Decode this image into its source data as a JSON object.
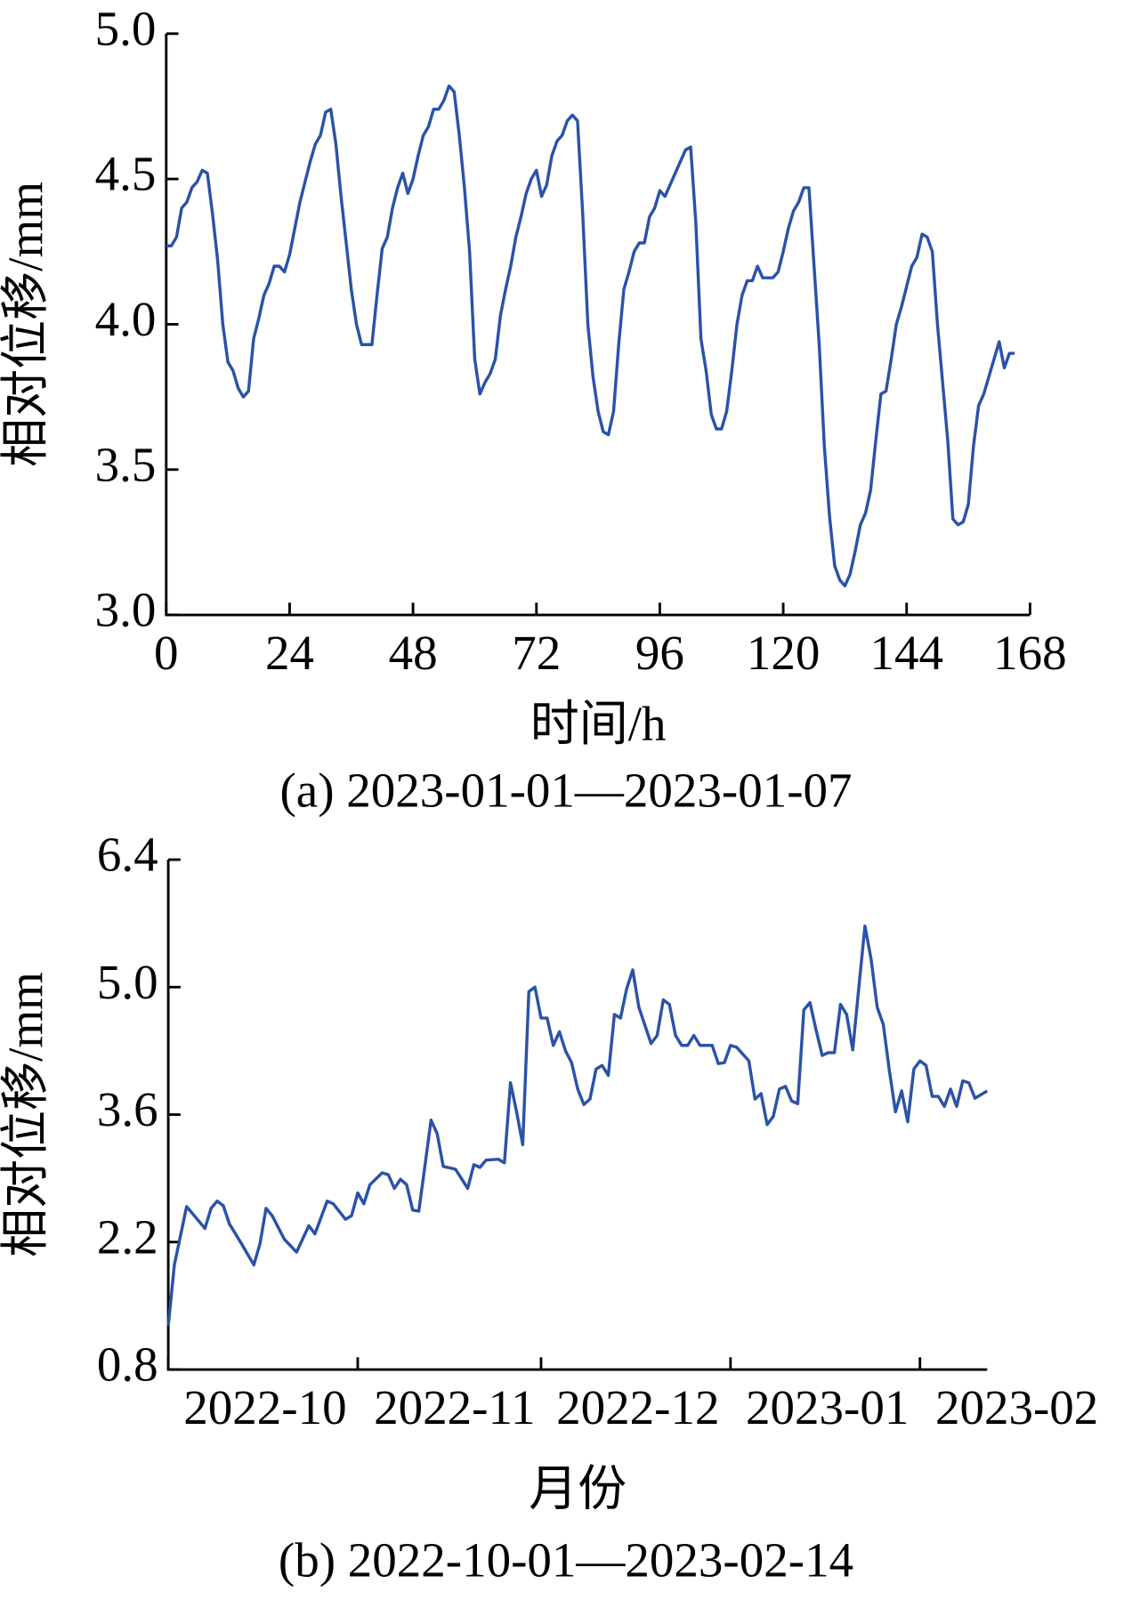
{
  "chart_data": [
    {
      "type": "line",
      "caption": "(a) 2023-01-01—2023-01-07",
      "xlabel": "时间/h",
      "ylabel": "相对位移/mm",
      "xlim": [
        0,
        168
      ],
      "xticks": [
        0,
        24,
        48,
        72,
        96,
        120,
        144,
        168
      ],
      "ylim": [
        3,
        5
      ],
      "yticks": [
        {
          "value": 3,
          "label": "3.0"
        },
        3.5,
        {
          "value": 4,
          "label": "4.0"
        },
        4.5,
        {
          "value": 5,
          "label": "5.0"
        }
      ],
      "series": [
        {
          "color": "#2a52a8",
          "x": [
            0,
            1,
            2,
            3,
            4,
            5,
            6,
            7,
            8,
            9,
            10,
            11,
            12,
            13,
            14,
            15,
            16,
            17,
            18,
            19,
            20,
            21,
            22,
            23,
            24,
            25,
            26,
            27,
            28,
            29,
            30,
            31,
            32,
            33,
            34,
            35,
            36,
            37,
            38,
            39,
            40,
            41,
            42,
            43,
            44,
            45,
            46,
            47,
            48,
            49,
            50,
            51,
            52,
            53,
            54,
            55,
            56,
            57,
            58,
            59,
            60,
            61,
            62,
            63,
            64,
            65,
            66,
            67,
            68,
            69,
            70,
            71,
            72,
            73,
            74,
            75,
            76,
            77,
            78,
            79,
            80,
            81,
            82,
            83,
            84,
            85,
            86,
            87,
            88,
            89,
            90,
            91,
            92,
            93,
            94,
            95,
            96,
            97,
            98,
            99,
            100,
            101,
            102,
            103,
            104,
            105,
            106,
            107,
            108,
            109,
            110,
            111,
            112,
            113,
            114,
            115,
            116,
            117,
            118,
            119,
            120,
            121,
            122,
            123,
            124,
            125,
            126,
            127,
            128,
            129,
            130,
            131,
            132,
            133,
            134,
            135,
            136,
            137,
            138,
            139,
            140,
            141,
            142,
            143,
            144,
            145,
            146,
            147,
            148,
            149,
            150,
            151,
            152,
            153,
            154,
            155,
            156,
            157,
            158,
            159,
            160,
            161,
            162,
            163,
            164,
            165
          ],
          "values": [
            4.27,
            4.27,
            4.3,
            4.4,
            4.42,
            4.47,
            4.49,
            4.53,
            4.52,
            4.38,
            4.22,
            4.0,
            3.87,
            3.84,
            3.78,
            3.75,
            3.77,
            3.95,
            4.02,
            4.1,
            4.14,
            4.2,
            4.2,
            4.18,
            4.24,
            4.33,
            4.42,
            4.49,
            4.56,
            4.62,
            4.65,
            4.73,
            4.74,
            4.62,
            4.44,
            4.28,
            4.12,
            4.0,
            3.93,
            3.93,
            3.93,
            4.1,
            4.26,
            4.3,
            4.4,
            4.47,
            4.52,
            4.45,
            4.5,
            4.58,
            4.65,
            4.68,
            4.74,
            4.74,
            4.77,
            4.82,
            4.8,
            4.65,
            4.47,
            4.25,
            3.88,
            3.76,
            3.8,
            3.83,
            3.88,
            4.03,
            4.12,
            4.2,
            4.3,
            4.37,
            4.45,
            4.5,
            4.53,
            4.44,
            4.48,
            4.58,
            4.63,
            4.65,
            4.7,
            4.72,
            4.7,
            4.38,
            4.0,
            3.82,
            3.7,
            3.63,
            3.62,
            3.7,
            3.93,
            4.12,
            4.18,
            4.25,
            4.28,
            4.28,
            4.37,
            4.4,
            4.46,
            4.44,
            4.48,
            4.52,
            4.56,
            4.6,
            4.61,
            4.35,
            3.95,
            3.84,
            3.69,
            3.64,
            3.64,
            3.7,
            3.84,
            4.0,
            4.1,
            4.15,
            4.15,
            4.2,
            4.16,
            4.16,
            4.16,
            4.18,
            4.25,
            4.33,
            4.39,
            4.42,
            4.47,
            4.47,
            4.2,
            3.93,
            3.58,
            3.34,
            3.17,
            3.12,
            3.1,
            3.14,
            3.22,
            3.31,
            3.35,
            3.43,
            3.6,
            3.76,
            3.77,
            3.88,
            4.0,
            4.06,
            4.13,
            4.2,
            4.23,
            4.31,
            4.3,
            4.25,
            4.0,
            3.8,
            3.6,
            3.33,
            3.31,
            3.32,
            3.38,
            3.58,
            3.72,
            3.76,
            3.82,
            3.88,
            3.94,
            3.85,
            3.9,
            3.9
          ]
        }
      ]
    },
    {
      "type": "line",
      "caption": "(b) 2022-10-01—2023-02-14",
      "xlabel": "月份",
      "ylabel": "相对位移/mm",
      "xlim": [
        "2022-10-01",
        "2023-02-12"
      ],
      "xticks": [
        {
          "value": "2022-10-01",
          "label": "2022-10"
        },
        {
          "value": "2022-11-01",
          "label": "2022-11"
        },
        {
          "value": "2022-12-01",
          "label": "2022-12"
        },
        {
          "value": "2023-01-01",
          "label": "2023-01"
        },
        {
          "value": "2023-02-01",
          "label": "2023-02"
        }
      ],
      "ylim": [
        0.8,
        6.4
      ],
      "yticks": [
        0.8,
        2.2,
        3.6,
        {
          "value": 5,
          "label": "5.0"
        },
        6.4
      ],
      "series": [
        {
          "color": "#2a52a8",
          "x": [
            "2022-10-01",
            "2022-10-02",
            "2022-10-04",
            "2022-10-07",
            "2022-10-08",
            "2022-10-09",
            "2022-10-10",
            "2022-10-11",
            "2022-10-13",
            "2022-10-15",
            "2022-10-16",
            "2022-10-17",
            "2022-10-18",
            "2022-10-20",
            "2022-10-22",
            "2022-10-24",
            "2022-10-25",
            "2022-10-27",
            "2022-10-28",
            "2022-10-30",
            "2022-10-31",
            "2022-11-01",
            "2022-11-02",
            "2022-11-03",
            "2022-11-05",
            "2022-11-06",
            "2022-11-07",
            "2022-11-08",
            "2022-11-09",
            "2022-11-10",
            "2022-11-11",
            "2022-11-13",
            "2022-11-14",
            "2022-11-15",
            "2022-11-17",
            "2022-11-19",
            "2022-11-20",
            "2022-11-21",
            "2022-11-22",
            "2022-11-24",
            "2022-11-25",
            "2022-11-26",
            "2022-11-27",
            "2022-11-28",
            "2022-11-29",
            "2022-11-30",
            "2022-12-01",
            "2022-12-02",
            "2022-12-03",
            "2022-12-04",
            "2022-12-05",
            "2022-12-06",
            "2022-12-07",
            "2022-12-08",
            "2022-12-09",
            "2022-12-10",
            "2022-12-11",
            "2022-12-12",
            "2022-12-13",
            "2022-12-14",
            "2022-12-15",
            "2022-12-16",
            "2022-12-17",
            "2022-12-19",
            "2022-12-20",
            "2022-12-21",
            "2022-12-22",
            "2022-12-23",
            "2022-12-24",
            "2022-12-25",
            "2022-12-26",
            "2022-12-27",
            "2022-12-29",
            "2022-12-30",
            "2022-12-31",
            "2023-01-01",
            "2023-01-02",
            "2023-01-04",
            "2023-01-05",
            "2023-01-06",
            "2023-01-07",
            "2023-01-08",
            "2023-01-09",
            "2023-01-10",
            "2023-01-11",
            "2023-01-12",
            "2023-01-13",
            "2023-01-14",
            "2023-01-15",
            "2023-01-16",
            "2023-01-17",
            "2023-01-18",
            "2023-01-19",
            "2023-01-20",
            "2023-01-21",
            "2023-01-22",
            "2023-01-23",
            "2023-01-24",
            "2023-01-25",
            "2023-01-26",
            "2023-01-27",
            "2023-01-28",
            "2023-01-29",
            "2023-01-30",
            "2023-01-31",
            "2023-02-01",
            "2023-02-02",
            "2023-02-03",
            "2023-02-04",
            "2023-02-05",
            "2023-02-06",
            "2023-02-07",
            "2023-02-08",
            "2023-02-09",
            "2023-02-10",
            "2023-02-12"
          ],
          "values": [
            1.28,
            1.95,
            2.59,
            2.35,
            2.57,
            2.65,
            2.6,
            2.4,
            2.18,
            1.95,
            2.18,
            2.57,
            2.49,
            2.23,
            2.09,
            2.38,
            2.29,
            2.65,
            2.62,
            2.45,
            2.49,
            2.74,
            2.62,
            2.83,
            2.96,
            2.94,
            2.79,
            2.89,
            2.83,
            2.55,
            2.54,
            3.54,
            3.39,
            3.03,
            3.0,
            2.79,
            3.05,
            3.02,
            3.1,
            3.11,
            3.07,
            3.95,
            3.63,
            3.27,
            4.95,
            5.0,
            4.66,
            4.66,
            4.36,
            4.51,
            4.3,
            4.17,
            3.88,
            3.71,
            3.77,
            4.1,
            4.14,
            4.03,
            4.7,
            4.66,
            4.98,
            5.19,
            4.78,
            4.38,
            4.47,
            4.86,
            4.81,
            4.47,
            4.36,
            4.36,
            4.47,
            4.36,
            4.36,
            4.16,
            4.17,
            4.36,
            4.34,
            4.19,
            3.77,
            3.83,
            3.49,
            3.58,
            3.88,
            3.91,
            3.75,
            3.72,
            4.75,
            4.83,
            4.53,
            4.25,
            4.28,
            4.28,
            4.81,
            4.7,
            4.31,
            5.0,
            5.67,
            5.31,
            4.78,
            4.59,
            4.08,
            3.63,
            3.86,
            3.52,
            4.1,
            4.19,
            4.14,
            3.8,
            3.8,
            3.69,
            3.88,
            3.69,
            3.97,
            3.95,
            3.78,
            3.86
          ]
        }
      ]
    }
  ]
}
